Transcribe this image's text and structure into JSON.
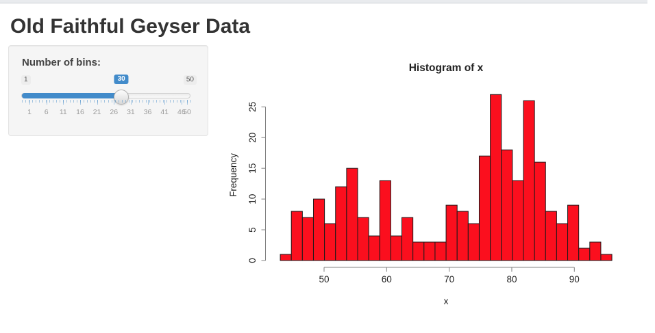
{
  "page": {
    "title": "Old Faithful Geyser Data"
  },
  "controls": {
    "bins_label": "Number of bins:",
    "slider": {
      "min": "1",
      "max": "50",
      "value": "30",
      "value_num": 30,
      "min_num": 1,
      "max_num": 50,
      "tick_labels": [
        1,
        6,
        11,
        16,
        21,
        26,
        31,
        36,
        41,
        46,
        50
      ],
      "accent_color": "#428bca",
      "handle_color": "#e6e6e6"
    }
  },
  "chart_data": {
    "type": "bar",
    "title": "Histogram of x",
    "xlabel": "x",
    "ylabel": "Frequency",
    "bin_start": 43,
    "bin_end": 96,
    "bin_count": 30,
    "counts": [
      1,
      8,
      7,
      10,
      6,
      12,
      15,
      7,
      4,
      13,
      4,
      7,
      3,
      3,
      3,
      9,
      8,
      6,
      17,
      27,
      18,
      13,
      26,
      16,
      8,
      6,
      9,
      2,
      3,
      1
    ],
    "x_ticks": [
      50,
      60,
      70,
      80,
      90
    ],
    "y_ticks": [
      0,
      5,
      10,
      15,
      20,
      25
    ],
    "xlim": [
      43,
      96
    ],
    "ylim": [
      0,
      27
    ],
    "bar_fill": "#fb0f1e",
    "bar_stroke": "#1a1a1a",
    "axis_color": "#808080"
  }
}
